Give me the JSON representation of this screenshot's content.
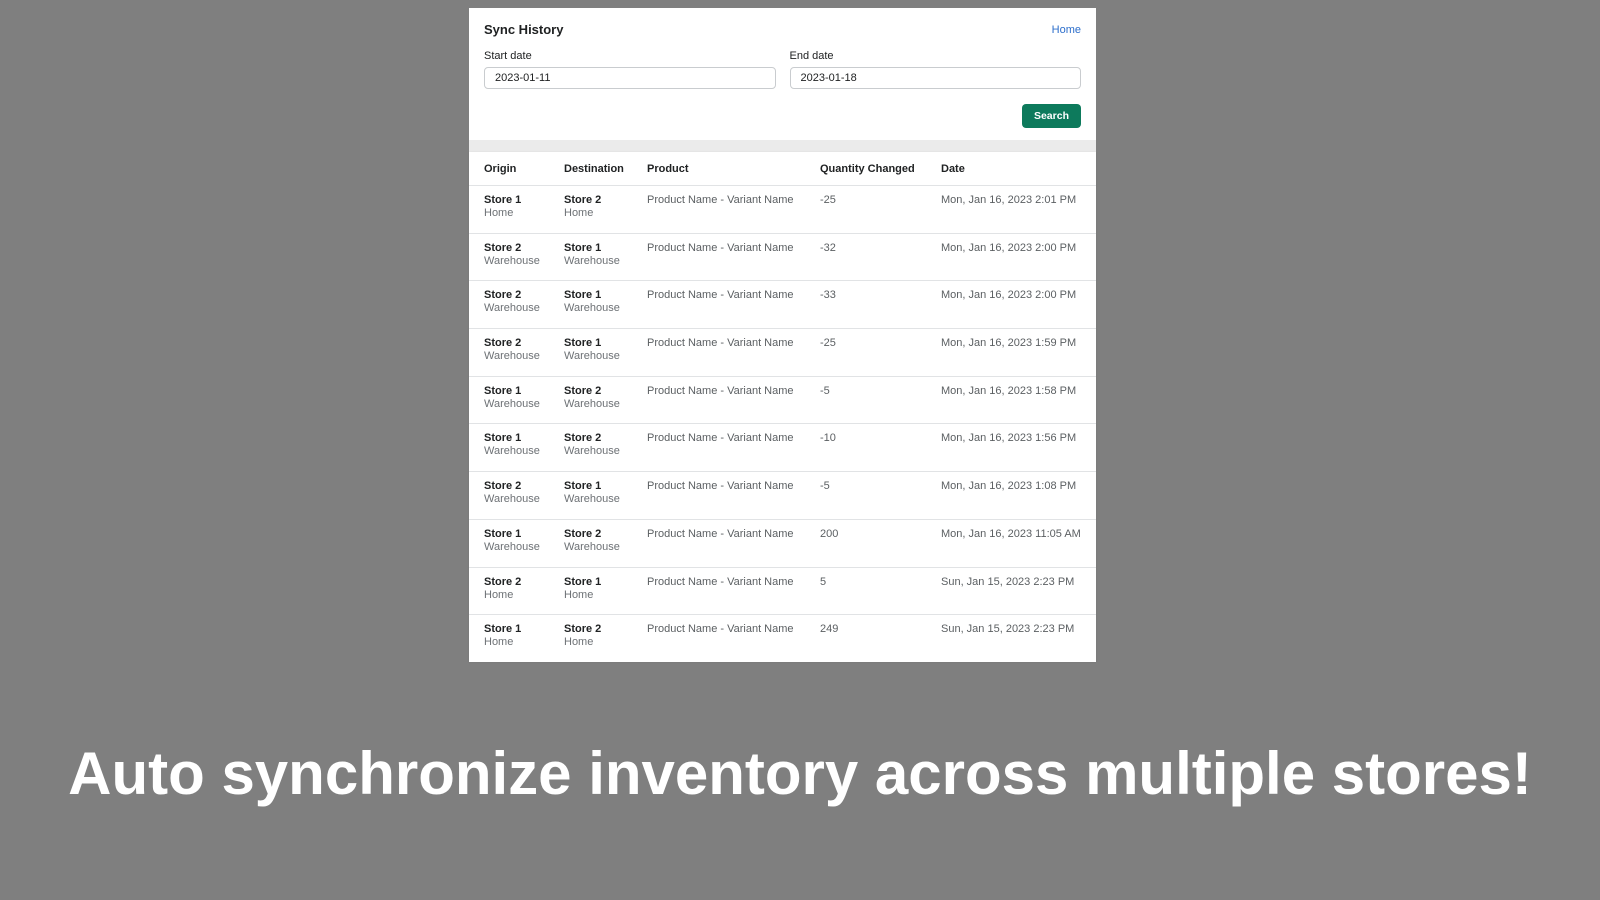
{
  "page": {
    "headline": "Auto synchronize inventory across multiple stores!",
    "colors": {
      "background_gray": "#7f7f7f",
      "accent_green": "#0d7a5c",
      "link_blue": "#2c6ecb",
      "headline_white": "#ffffff"
    }
  },
  "app": {
    "title": "Sync History",
    "home_link": "Home",
    "form": {
      "start_date": {
        "label": "Start date",
        "value": "2023-01-11"
      },
      "end_date": {
        "label": "End date",
        "value": "2023-01-18"
      },
      "search_label": "Search"
    },
    "table": {
      "headers": [
        "Origin",
        "Destination",
        "Product",
        "Quantity Changed",
        "Date"
      ],
      "rows": [
        {
          "origin_store": "Store 1",
          "origin_location": "Home",
          "dest_store": "Store 2",
          "dest_location": "Home",
          "product": "Product Name - Variant Name",
          "quantity": "-25",
          "date": "Mon, Jan 16, 2023 2:01 PM"
        },
        {
          "origin_store": "Store 2",
          "origin_location": "Warehouse",
          "dest_store": "Store 1",
          "dest_location": "Warehouse",
          "product": "Product Name - Variant Name",
          "quantity": "-32",
          "date": "Mon, Jan 16, 2023 2:00 PM"
        },
        {
          "origin_store": "Store 2",
          "origin_location": "Warehouse",
          "dest_store": "Store 1",
          "dest_location": "Warehouse",
          "product": "Product Name - Variant Name",
          "quantity": "-33",
          "date": "Mon, Jan 16, 2023 2:00 PM"
        },
        {
          "origin_store": "Store 2",
          "origin_location": "Warehouse",
          "dest_store": "Store 1",
          "dest_location": "Warehouse",
          "product": "Product Name - Variant Name",
          "quantity": "-25",
          "date": "Mon, Jan 16, 2023 1:59 PM"
        },
        {
          "origin_store": "Store 1",
          "origin_location": "Warehouse",
          "dest_store": "Store 2",
          "dest_location": "Warehouse",
          "product": "Product Name - Variant Name",
          "quantity": "-5",
          "date": "Mon, Jan 16, 2023 1:58 PM"
        },
        {
          "origin_store": "Store 1",
          "origin_location": "Warehouse",
          "dest_store": "Store 2",
          "dest_location": "Warehouse",
          "product": "Product Name - Variant Name",
          "quantity": "-10",
          "date": "Mon, Jan 16, 2023 1:56 PM"
        },
        {
          "origin_store": "Store 2",
          "origin_location": "Warehouse",
          "dest_store": "Store 1",
          "dest_location": "Warehouse",
          "product": "Product Name - Variant Name",
          "quantity": "-5",
          "date": "Mon, Jan 16, 2023 1:08 PM"
        },
        {
          "origin_store": "Store 1",
          "origin_location": "Warehouse",
          "dest_store": "Store 2",
          "dest_location": "Warehouse",
          "product": "Product Name - Variant Name",
          "quantity": "200",
          "date": "Mon, Jan 16, 2023 11:05 AM"
        },
        {
          "origin_store": "Store 2",
          "origin_location": "Home",
          "dest_store": "Store 1",
          "dest_location": "Home",
          "product": "Product Name - Variant Name",
          "quantity": "5",
          "date": "Sun, Jan 15, 2023 2:23 PM"
        },
        {
          "origin_store": "Store 1",
          "origin_location": "Home",
          "dest_store": "Store 2",
          "dest_location": "Home",
          "product": "Product Name - Variant Name",
          "quantity": "249",
          "date": "Sun, Jan 15, 2023 2:23 PM"
        }
      ]
    }
  }
}
